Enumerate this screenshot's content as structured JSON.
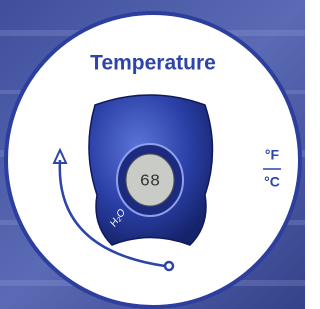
{
  "title": "Temperature",
  "device": {
    "display": "68",
    "logo": "H₂O"
  },
  "units": [
    "°F",
    "°C"
  ]
}
